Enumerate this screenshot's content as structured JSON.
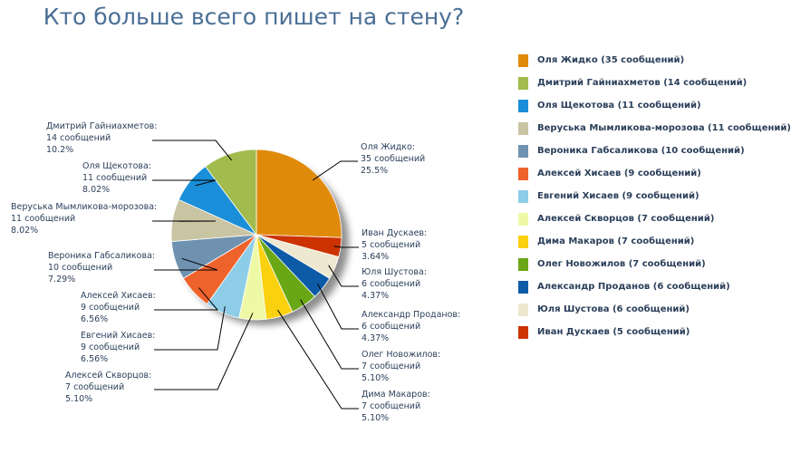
{
  "chart_data": {
    "type": "pie",
    "title": "Кто больше всего пишет на стену?",
    "value_unit": "сообщений",
    "legend_position": "right",
    "slices": [
      {
        "name": "Оля Жидко",
        "value": 35,
        "percent": "25.5%",
        "color": "#e08a0c",
        "legend": "Оля Жидко (35 сообщений)",
        "label": [
          "Оля Жидко:",
          "35 сообщений",
          "25.5%"
        ]
      },
      {
        "name": "Иван Дускаев",
        "value": 5,
        "percent": "3.64%",
        "color": "#cc3300",
        "legend": "Иван Дускаев (5 сообщений)",
        "label": [
          "Иван Дускаев:",
          "5 сообщений",
          "3.64%"
        ]
      },
      {
        "name": "Юля Шустова",
        "value": 6,
        "percent": "4.37%",
        "color": "#ede8cf",
        "legend": "Юля Шустова (6 сообщений)",
        "label": [
          "Юля Шустова:",
          "6 сообщений",
          "4.37%"
        ]
      },
      {
        "name": "Александр Проданов",
        "value": 6,
        "percent": "4.37%",
        "color": "#0d5aa7",
        "legend": "Александр Проданов (6 сообщений)",
        "label": [
          "Александр Проданов:",
          "6 сообщений",
          "4.37%"
        ]
      },
      {
        "name": "Олег Новожилов",
        "value": 7,
        "percent": "5.10%",
        "color": "#6aa715",
        "legend": "Олег Новожилов (7 сообщений)",
        "label": [
          "Олег Новожилов:",
          "7 сообщений",
          "5.10%"
        ]
      },
      {
        "name": "Дима Макаров",
        "value": 7,
        "percent": "5.10%",
        "color": "#f9d10f",
        "legend": "Дима Макаров (7 сообщений)",
        "label": [
          "Дима Макаров:",
          "7 сообщений",
          "5.10%"
        ]
      },
      {
        "name": "Алексей Скворцов",
        "value": 7,
        "percent": "5.10%",
        "color": "#eef9a6",
        "legend": "Алексей Скворцов (7 сообщений)",
        "label": [
          "Алексей Скворцов:",
          "7 сообщений",
          "5.10%"
        ]
      },
      {
        "name": "Евгений Хисаев",
        "value": 9,
        "percent": "6.56%",
        "color": "#8dcde8",
        "legend": "Евгений Хисаев (9 сообщений)",
        "label": [
          "Евгений Хисаев:",
          "9 сообщений",
          "6.56%"
        ]
      },
      {
        "name": "Алексей Хисаев",
        "value": 9,
        "percent": "6.56%",
        "color": "#ee632c",
        "legend": "Алексей Хисаев (9 сообщений)",
        "label": [
          "Алексей Хисаев:",
          "9 сообщений",
          "6.56%"
        ]
      },
      {
        "name": "Вероника Габсаликова",
        "value": 10,
        "percent": "7.29%",
        "color": "#6e92b0",
        "legend": "Вероника Габсаликова (10 сообщений)",
        "label": [
          "Вероника Габсаликова:",
          "10 сообщений",
          "7.29%"
        ]
      },
      {
        "name": "Веруська Мымликова-морозова",
        "value": 11,
        "percent": "8.02%",
        "color": "#c9c4a2",
        "legend": "Веруська Мымликова-морозова (11 сообщений)",
        "label": [
          "Веруська Мымликова-морозова:",
          "11 сообщений",
          "8.02%"
        ]
      },
      {
        "name": "Оля Щекотова",
        "value": 11,
        "percent": "8.02%",
        "color": "#1a8ed8",
        "legend": "Оля Щекотова (11 сообщений)",
        "label": [
          "Оля Щекотова:",
          "11 сообщений",
          "8.02%"
        ]
      },
      {
        "name": "Дмитрий Гайниахметов",
        "value": 14,
        "percent": "10.2%",
        "color": "#a1bb4c",
        "legend": "Дмитрий Гайниахметов (14 сообщений)",
        "label": [
          "Дмитрий Гайниахметов:",
          "14 сообщений",
          "10.2%"
        ]
      }
    ],
    "legend_order": [
      "Оля Жидко",
      "Дмитрий Гайниахметов",
      "Оля Щекотова",
      "Веруська Мымликова-морозова",
      "Вероника Габсаликова",
      "Алексей Хисаев",
      "Евгений Хисаев",
      "Алексей Скворцов",
      "Дима Макаров",
      "Олег Новожилов",
      "Александр Проданов",
      "Юля Шустова",
      "Иван Дускаев"
    ]
  }
}
